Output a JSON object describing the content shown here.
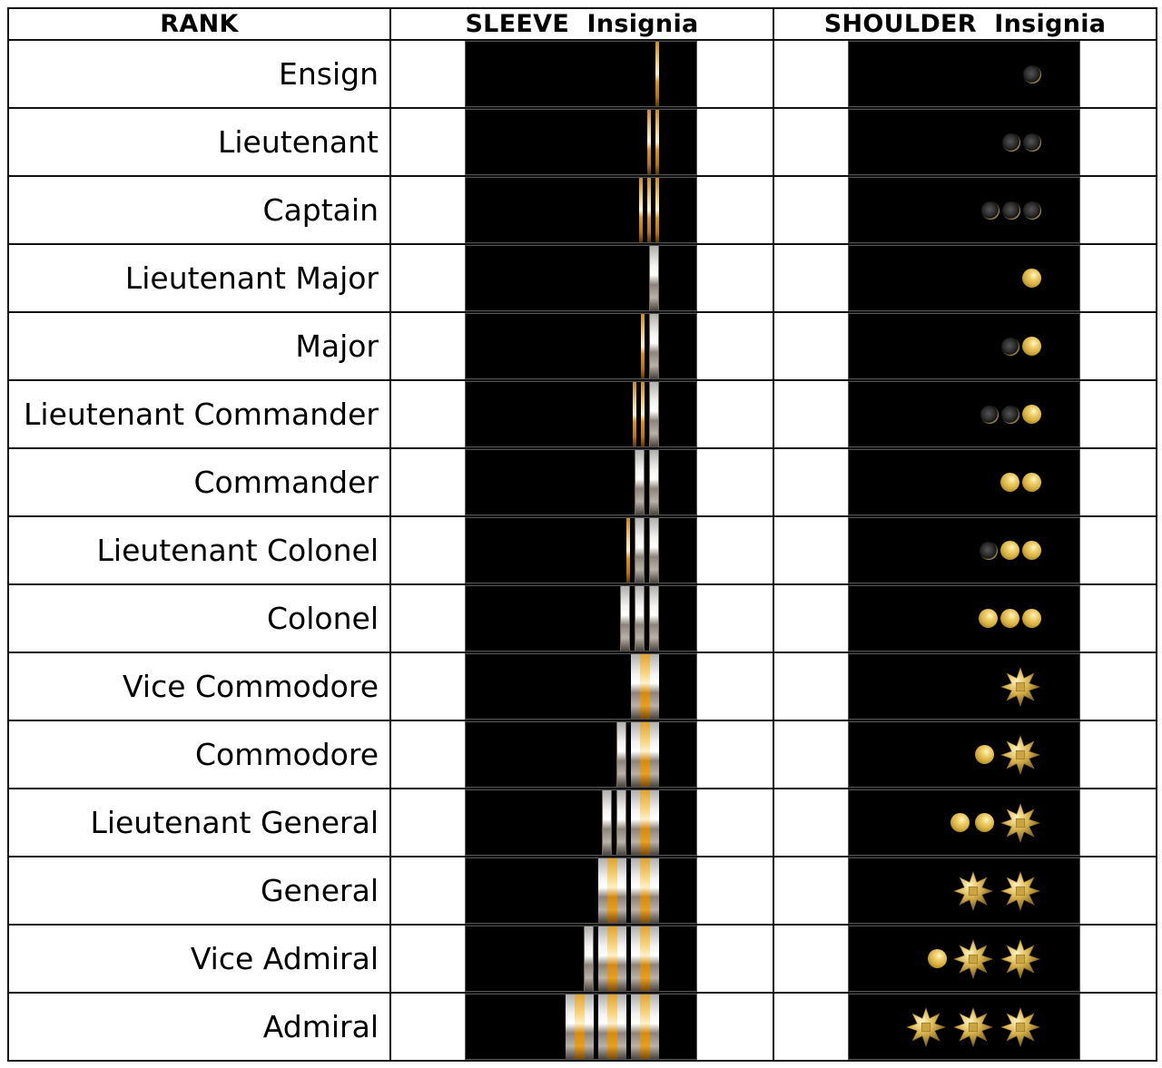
{
  "table": {
    "headers": {
      "rank": "RANK",
      "sleeve": "SLEEVE  Insignia",
      "shoulder": "SHOULDER  Insignia"
    },
    "rows": [
      {
        "rank": "Ensign",
        "sleeve": [
          "g"
        ],
        "shoulder": [
          "o"
        ]
      },
      {
        "rank": "Lieutenant",
        "sleeve": [
          "g",
          "g"
        ],
        "shoulder": [
          "o",
          "o"
        ]
      },
      {
        "rank": "Captain",
        "sleeve": [
          "g",
          "g",
          "g"
        ],
        "shoulder": [
          "o",
          "o",
          "o"
        ]
      },
      {
        "rank": "Lieutenant Major",
        "sleeve": [
          "s"
        ],
        "shoulder": [
          "p"
        ]
      },
      {
        "rank": "Major",
        "sleeve": [
          "g",
          "s"
        ],
        "shoulder": [
          "o",
          "p"
        ]
      },
      {
        "rank": "Lieutenant Commander",
        "sleeve": [
          "g",
          "g",
          "s"
        ],
        "shoulder": [
          "o",
          "o",
          "p"
        ]
      },
      {
        "rank": "Commander",
        "sleeve": [
          "s",
          "s"
        ],
        "shoulder": [
          "p",
          "p"
        ]
      },
      {
        "rank": "Lieutenant Colonel",
        "sleeve": [
          "g",
          "s",
          "s"
        ],
        "shoulder": [
          "o",
          "p",
          "p"
        ]
      },
      {
        "rank": "Colonel",
        "sleeve": [
          "s",
          "s",
          "s"
        ],
        "shoulder": [
          "p",
          "p",
          "p"
        ]
      },
      {
        "rank": "Vice Commodore",
        "sleeve": [
          "w"
        ],
        "shoulder": [
          "star"
        ]
      },
      {
        "rank": "Commodore",
        "sleeve": [
          "s",
          "w"
        ],
        "shoulder": [
          "p",
          "star"
        ]
      },
      {
        "rank": "Lieutenant General",
        "sleeve": [
          "s",
          "s",
          "w"
        ],
        "shoulder": [
          "p",
          "p",
          "star"
        ]
      },
      {
        "rank": "General",
        "sleeve": [
          "w",
          "w"
        ],
        "shoulder": [
          "star",
          "star"
        ]
      },
      {
        "rank": "Vice Admiral",
        "sleeve": [
          "s",
          "w",
          "w"
        ],
        "shoulder": [
          "p",
          "star",
          "star"
        ]
      },
      {
        "rank": "Admiral",
        "sleeve": [
          "w",
          "w",
          "w"
        ],
        "shoulder": [
          "star",
          "star",
          "star"
        ]
      }
    ]
  },
  "legend": {
    "g": "thin-gold-stripe",
    "s": "silver-stripe",
    "w": "wide-silver-gold-stripe",
    "o": "hollow-pip",
    "p": "gold-pip",
    "star": "gold-star"
  },
  "colors": {
    "panel": "#000000",
    "gold": "#d9a030",
    "silver": "#e8e8e8",
    "border": "#111111"
  }
}
